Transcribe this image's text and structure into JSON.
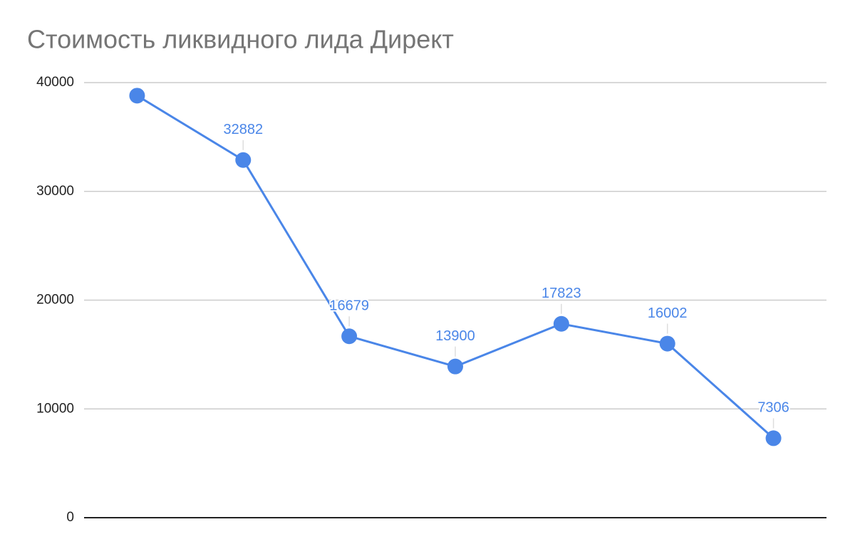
{
  "chart_data": {
    "type": "line",
    "title": "Стоимость ликвидного лида Директ",
    "categories": [
      null,
      null,
      null,
      null,
      null,
      null,
      null
    ],
    "series": [
      {
        "color": "#4a86e8",
        "values": [
          38800,
          32882,
          16679,
          13900,
          17823,
          16002,
          7306
        ],
        "value_labels": [
          null,
          "32882",
          "16679",
          "13900",
          "17823",
          "16002",
          "7306"
        ]
      }
    ],
    "ylim": [
      0,
      40000
    ],
    "yticks": [
      0,
      10000,
      20000,
      30000,
      40000
    ],
    "grid": true
  }
}
